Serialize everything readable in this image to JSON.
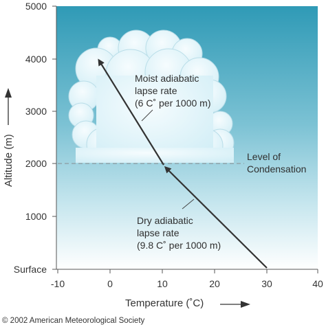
{
  "diagram": {
    "y_axis": {
      "title": "Altitude (m)",
      "ticks": [
        "Surface",
        "1000",
        "2000",
        "3000",
        "4000",
        "5000"
      ]
    },
    "x_axis": {
      "title": "Temperature (˚C)",
      "ticks": [
        "-10",
        "0",
        "10",
        "20",
        "30",
        "40"
      ]
    },
    "labels": {
      "moist_line1": "Moist adiabatic",
      "moist_line2": "lapse rate",
      "moist_line3": "(6 C˚ per 1000 m)",
      "dry_line1": "Dry adiabatic",
      "dry_line2": "lapse rate",
      "dry_line3": "(9.8 C˚ per 1000 m)",
      "condensation_line1": "Level of",
      "condensation_line2": "Condensation"
    },
    "copyright": "© 2002 American Meteorological Society",
    "colors": {
      "sky_top": "#2f9ab6",
      "sky_bottom": "#ffffff",
      "cloud": "#e6f6fb",
      "path": "#3a3a3a"
    },
    "path_points": [
      {
        "temperature_c": 30,
        "altitude_m": 0
      },
      {
        "temperature_c": 10.4,
        "altitude_m": 2000
      },
      {
        "temperature_c": -2,
        "altitude_m": 4000
      }
    ],
    "condensation_level_m": 2000
  }
}
